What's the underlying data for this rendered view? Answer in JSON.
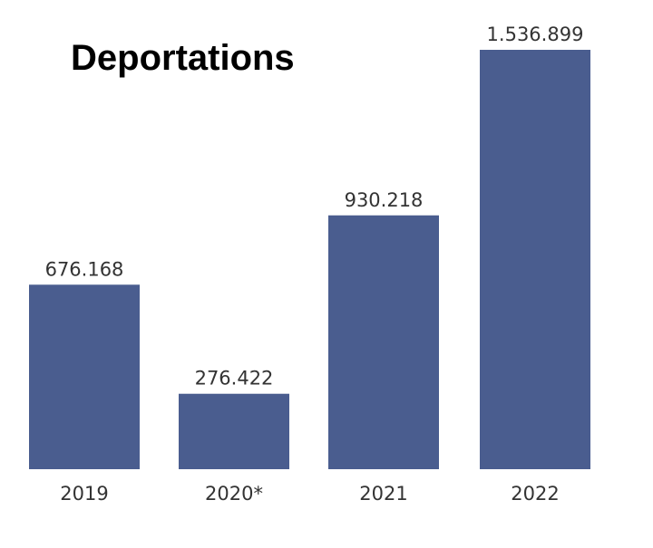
{
  "chart_data": {
    "type": "bar",
    "title": "Deportations",
    "xlabel": "",
    "ylabel": "",
    "categories": [
      "2019",
      "2020*",
      "2021",
      "2022"
    ],
    "values": [
      676168,
      276422,
      930218,
      1536899
    ],
    "value_labels": [
      "676.168",
      "276.422",
      "930.218",
      "1.536.899"
    ],
    "ylim": [
      0,
      1536899
    ],
    "grid": false,
    "bar_color": "#4a5d8f"
  }
}
